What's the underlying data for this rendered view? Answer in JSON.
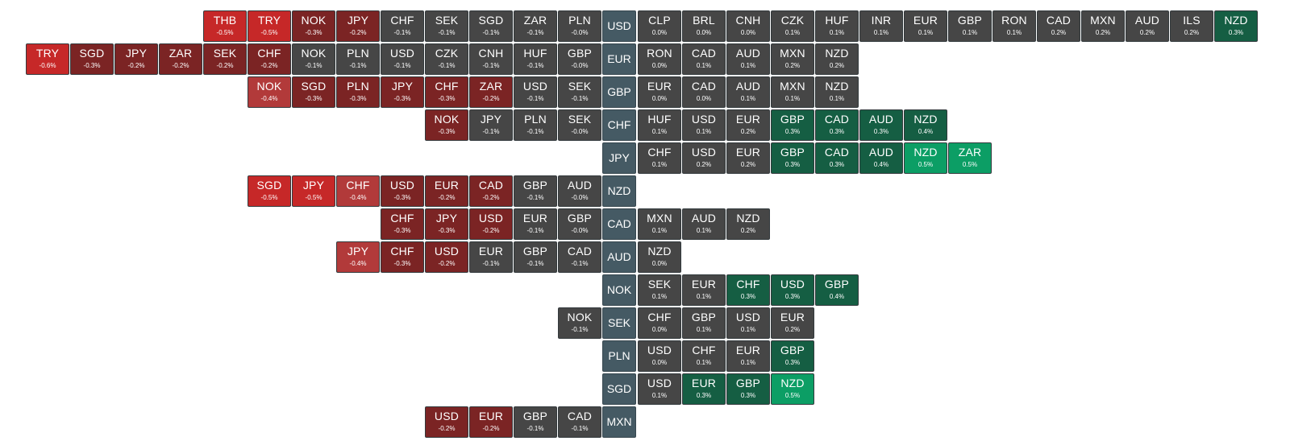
{
  "colors": {
    "neutral": "#464646",
    "base": "#455a64",
    "neg_strong": "#c62828",
    "neg_mid": "#b23a3a",
    "neg_weak": "#7b2424",
    "pos_weak": "#155e43",
    "pos_strong": "#0c9e65"
  },
  "rows": [
    {
      "base": "USD",
      "left": [
        {
          "code": "THB",
          "change": "-0.5%"
        },
        {
          "code": "TRY",
          "change": "-0.5%"
        },
        {
          "code": "NOK",
          "change": "-0.3%"
        },
        {
          "code": "JPY",
          "change": "-0.2%"
        },
        {
          "code": "CHF",
          "change": "-0.1%"
        },
        {
          "code": "SEK",
          "change": "-0.1%"
        },
        {
          "code": "SGD",
          "change": "-0.1%"
        },
        {
          "code": "ZAR",
          "change": "-0.1%"
        },
        {
          "code": "PLN",
          "change": "-0.0%"
        }
      ],
      "right": [
        {
          "code": "CLP",
          "change": "0.0%"
        },
        {
          "code": "BRL",
          "change": "0.0%"
        },
        {
          "code": "CNH",
          "change": "0.0%"
        },
        {
          "code": "CZK",
          "change": "0.1%"
        },
        {
          "code": "HUF",
          "change": "0.1%"
        },
        {
          "code": "INR",
          "change": "0.1%"
        },
        {
          "code": "EUR",
          "change": "0.1%"
        },
        {
          "code": "GBP",
          "change": "0.1%"
        },
        {
          "code": "RON",
          "change": "0.1%"
        },
        {
          "code": "CAD",
          "change": "0.2%"
        },
        {
          "code": "MXN",
          "change": "0.2%"
        },
        {
          "code": "AUD",
          "change": "0.2%"
        },
        {
          "code": "ILS",
          "change": "0.2%"
        },
        {
          "code": "NZD",
          "change": "0.3%"
        }
      ]
    },
    {
      "base": "EUR",
      "left": [
        {
          "code": "TRY",
          "change": "-0.6%"
        },
        {
          "code": "SGD",
          "change": "-0.3%"
        },
        {
          "code": "JPY",
          "change": "-0.2%"
        },
        {
          "code": "ZAR",
          "change": "-0.2%"
        },
        {
          "code": "SEK",
          "change": "-0.2%"
        },
        {
          "code": "CHF",
          "change": "-0.2%"
        },
        {
          "code": "NOK",
          "change": "-0.1%"
        },
        {
          "code": "PLN",
          "change": "-0.1%"
        },
        {
          "code": "USD",
          "change": "-0.1%"
        },
        {
          "code": "CZK",
          "change": "-0.1%"
        },
        {
          "code": "CNH",
          "change": "-0.1%"
        },
        {
          "code": "HUF",
          "change": "-0.1%"
        },
        {
          "code": "GBP",
          "change": "-0.0%"
        }
      ],
      "right": [
        {
          "code": "RON",
          "change": "0.0%"
        },
        {
          "code": "CAD",
          "change": "0.1%"
        },
        {
          "code": "AUD",
          "change": "0.1%"
        },
        {
          "code": "MXN",
          "change": "0.2%"
        },
        {
          "code": "NZD",
          "change": "0.2%"
        }
      ]
    },
    {
      "base": "GBP",
      "left": [
        {
          "code": "NOK",
          "change": "-0.4%"
        },
        {
          "code": "SGD",
          "change": "-0.3%"
        },
        {
          "code": "PLN",
          "change": "-0.3%"
        },
        {
          "code": "JPY",
          "change": "-0.3%"
        },
        {
          "code": "CHF",
          "change": "-0.3%"
        },
        {
          "code": "ZAR",
          "change": "-0.2%"
        },
        {
          "code": "USD",
          "change": "-0.1%"
        },
        {
          "code": "SEK",
          "change": "-0.1%"
        }
      ],
      "right": [
        {
          "code": "EUR",
          "change": "0.0%"
        },
        {
          "code": "CAD",
          "change": "0.0%"
        },
        {
          "code": "AUD",
          "change": "0.1%"
        },
        {
          "code": "MXN",
          "change": "0.1%"
        },
        {
          "code": "NZD",
          "change": "0.1%"
        }
      ]
    },
    {
      "base": "CHF",
      "left": [
        {
          "code": "NOK",
          "change": "-0.3%"
        },
        {
          "code": "JPY",
          "change": "-0.1%"
        },
        {
          "code": "PLN",
          "change": "-0.1%"
        },
        {
          "code": "SEK",
          "change": "-0.0%"
        }
      ],
      "right": [
        {
          "code": "HUF",
          "change": "0.1%"
        },
        {
          "code": "USD",
          "change": "0.1%"
        },
        {
          "code": "EUR",
          "change": "0.2%"
        },
        {
          "code": "GBP",
          "change": "0.3%"
        },
        {
          "code": "CAD",
          "change": "0.3%"
        },
        {
          "code": "AUD",
          "change": "0.3%"
        },
        {
          "code": "NZD",
          "change": "0.4%"
        }
      ]
    },
    {
      "base": "JPY",
      "left": [],
      "right": [
        {
          "code": "CHF",
          "change": "0.1%"
        },
        {
          "code": "USD",
          "change": "0.2%"
        },
        {
          "code": "EUR",
          "change": "0.2%"
        },
        {
          "code": "GBP",
          "change": "0.3%"
        },
        {
          "code": "CAD",
          "change": "0.3%"
        },
        {
          "code": "AUD",
          "change": "0.4%"
        },
        {
          "code": "NZD",
          "change": "0.5%"
        },
        {
          "code": "ZAR",
          "change": "0.5%"
        }
      ]
    },
    {
      "base": "NZD",
      "left": [
        {
          "code": "SGD",
          "change": "-0.5%"
        },
        {
          "code": "JPY",
          "change": "-0.5%"
        },
        {
          "code": "CHF",
          "change": "-0.4%"
        },
        {
          "code": "USD",
          "change": "-0.3%"
        },
        {
          "code": "EUR",
          "change": "-0.2%"
        },
        {
          "code": "CAD",
          "change": "-0.2%"
        },
        {
          "code": "GBP",
          "change": "-0.1%"
        },
        {
          "code": "AUD",
          "change": "-0.0%"
        }
      ],
      "right": []
    },
    {
      "base": "CAD",
      "left": [
        {
          "code": "CHF",
          "change": "-0.3%"
        },
        {
          "code": "JPY",
          "change": "-0.3%"
        },
        {
          "code": "USD",
          "change": "-0.2%"
        },
        {
          "code": "EUR",
          "change": "-0.1%"
        },
        {
          "code": "GBP",
          "change": "-0.0%"
        }
      ],
      "right": [
        {
          "code": "MXN",
          "change": "0.1%"
        },
        {
          "code": "AUD",
          "change": "0.1%"
        },
        {
          "code": "NZD",
          "change": "0.2%"
        }
      ]
    },
    {
      "base": "AUD",
      "left": [
        {
          "code": "JPY",
          "change": "-0.4%"
        },
        {
          "code": "CHF",
          "change": "-0.3%"
        },
        {
          "code": "USD",
          "change": "-0.2%"
        },
        {
          "code": "EUR",
          "change": "-0.1%"
        },
        {
          "code": "GBP",
          "change": "-0.1%"
        },
        {
          "code": "CAD",
          "change": "-0.1%"
        }
      ],
      "right": [
        {
          "code": "NZD",
          "change": "0.0%"
        }
      ]
    },
    {
      "base": "NOK",
      "left": [],
      "right": [
        {
          "code": "SEK",
          "change": "0.1%"
        },
        {
          "code": "EUR",
          "change": "0.1%"
        },
        {
          "code": "CHF",
          "change": "0.3%"
        },
        {
          "code": "USD",
          "change": "0.3%"
        },
        {
          "code": "GBP",
          "change": "0.4%"
        }
      ]
    },
    {
      "base": "SEK",
      "left": [
        {
          "code": "NOK",
          "change": "-0.1%"
        }
      ],
      "right": [
        {
          "code": "CHF",
          "change": "0.0%"
        },
        {
          "code": "GBP",
          "change": "0.1%"
        },
        {
          "code": "USD",
          "change": "0.1%"
        },
        {
          "code": "EUR",
          "change": "0.2%"
        }
      ]
    },
    {
      "base": "PLN",
      "left": [],
      "right": [
        {
          "code": "USD",
          "change": "0.0%"
        },
        {
          "code": "CHF",
          "change": "0.1%"
        },
        {
          "code": "EUR",
          "change": "0.1%"
        },
        {
          "code": "GBP",
          "change": "0.3%"
        }
      ]
    },
    {
      "base": "SGD",
      "left": [],
      "right": [
        {
          "code": "USD",
          "change": "0.1%"
        },
        {
          "code": "EUR",
          "change": "0.3%"
        },
        {
          "code": "GBP",
          "change": "0.3%"
        },
        {
          "code": "NZD",
          "change": "0.5%"
        }
      ]
    },
    {
      "base": "MXN",
      "left": [
        {
          "code": "USD",
          "change": "-0.2%"
        },
        {
          "code": "EUR",
          "change": "-0.2%"
        },
        {
          "code": "GBP",
          "change": "-0.1%"
        },
        {
          "code": "CAD",
          "change": "-0.1%"
        }
      ],
      "right": []
    }
  ]
}
